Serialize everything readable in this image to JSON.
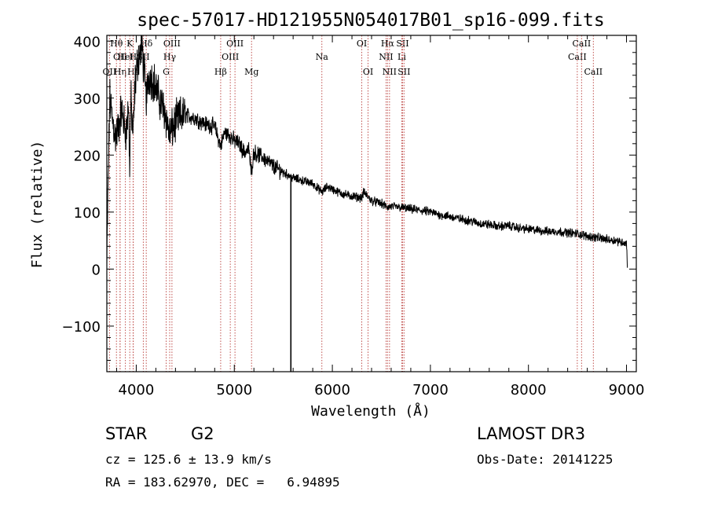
{
  "chart_data": {
    "type": "line",
    "title": "spec-57017-HD121955N054017B01_sp16-099.fits",
    "xlabel": "Wavelength (Å)",
    "ylabel": "Flux (relative)",
    "xlim": [
      3700,
      9100
    ],
    "ylim": [
      -180,
      410
    ],
    "xticks": [
      4000,
      5000,
      6000,
      7000,
      8000,
      9000
    ],
    "yticks": [
      -100,
      0,
      100,
      200,
      300,
      400
    ],
    "spectrum_anchors": {
      "x": [
        3700,
        3710,
        3730,
        3760,
        3790,
        3820,
        3850,
        3880,
        3900,
        3920,
        3933,
        3945,
        3968,
        3990,
        4020,
        4060,
        4102,
        4130,
        4180,
        4230,
        4260,
        4300,
        4340,
        4380,
        4430,
        4500,
        4600,
        4700,
        4800,
        4861,
        4900,
        4950,
        5000,
        5050,
        5100,
        5150,
        5172,
        5200,
        5300,
        5400,
        5500,
        5600,
        5700,
        5800,
        5893,
        5950,
        6000,
        6100,
        6200,
        6300,
        6320,
        6400,
        6500,
        6563,
        6600,
        6700,
        6800,
        6900,
        7000,
        7100,
        7200,
        7300,
        7400,
        7500,
        7600,
        7700,
        7800,
        7900,
        8000,
        8100,
        8200,
        8300,
        8400,
        8500,
        8600,
        8700,
        8800,
        8900,
        9000,
        9010
      ],
      "y": [
        0,
        120,
        300,
        260,
        230,
        250,
        280,
        250,
        240,
        290,
        180,
        300,
        230,
        330,
        370,
        390,
        300,
        340,
        330,
        300,
        290,
        270,
        235,
        250,
        265,
        270,
        265,
        255,
        250,
        215,
        240,
        235,
        225,
        220,
        205,
        210,
        170,
        205,
        195,
        180,
        170,
        160,
        155,
        150,
        135,
        145,
        140,
        132,
        128,
        125,
        135,
        120,
        115,
        108,
        110,
        108,
        105,
        103,
        100,
        95,
        92,
        88,
        85,
        80,
        78,
        75,
        76,
        72,
        70,
        68,
        66,
        66,
        64,
        62,
        58,
        55,
        52,
        50,
        45,
        5
      ]
    },
    "spike": {
      "x": 5577,
      "y_min": -180,
      "y_max": 160
    },
    "line_markers": [
      {
        "label": "OII",
        "x": 3727,
        "row": 2
      },
      {
        "label": "Hθ",
        "x": 3798,
        "row": 0
      },
      {
        "label": "OII",
        "x": 3835,
        "row": 1
      },
      {
        "label": "Hη",
        "x": 3835,
        "row": 2
      },
      {
        "label": "HeI",
        "x": 3889,
        "row": 1
      },
      {
        "label": "K",
        "x": 3934,
        "row": 0
      },
      {
        "label": "Hε",
        "x": 3970,
        "row": 2
      },
      {
        "label": "H",
        "x": 3968,
        "row": 1
      },
      {
        "label": "SII",
        "x": 4072,
        "row": 1
      },
      {
        "label": "Hδ",
        "x": 4102,
        "row": 0
      },
      {
        "label": "G",
        "x": 4305,
        "row": 2
      },
      {
        "label": "Hγ",
        "x": 4341,
        "row": 1
      },
      {
        "label": "OIII",
        "x": 4364,
        "row": 0
      },
      {
        "label": "Hβ",
        "x": 4861,
        "row": 2
      },
      {
        "label": "OIII",
        "x": 4959,
        "row": 1
      },
      {
        "label": "OIII",
        "x": 5007,
        "row": 0
      },
      {
        "label": "Mg",
        "x": 5176,
        "row": 2
      },
      {
        "label": "Na",
        "x": 5893,
        "row": 1
      },
      {
        "label": "OI",
        "x": 6300,
        "row": 0
      },
      {
        "label": "OI",
        "x": 6364,
        "row": 2
      },
      {
        "label": "NII",
        "x": 6548,
        "row": 1
      },
      {
        "label": "Hα",
        "x": 6563,
        "row": 0
      },
      {
        "label": "NII",
        "x": 6583,
        "row": 2
      },
      {
        "label": "Li",
        "x": 6708,
        "row": 1
      },
      {
        "label": "SII",
        "x": 6716,
        "row": 0
      },
      {
        "label": "SII",
        "x": 6731,
        "row": 2
      },
      {
        "label": "CaII",
        "x": 8498,
        "row": 1
      },
      {
        "label": "CaII",
        "x": 8542,
        "row": 0
      },
      {
        "label": "CaII",
        "x": 8662,
        "row": 2
      }
    ]
  },
  "info": {
    "class_label": "STAR",
    "subclass": "G2",
    "survey": "LAMOST DR3",
    "redshift": "cz = 125.6 ± 13.9 km/s",
    "obs_date": "Obs-Date: 20141225",
    "coords": "RA = 183.62970, DEC =   6.94895"
  }
}
